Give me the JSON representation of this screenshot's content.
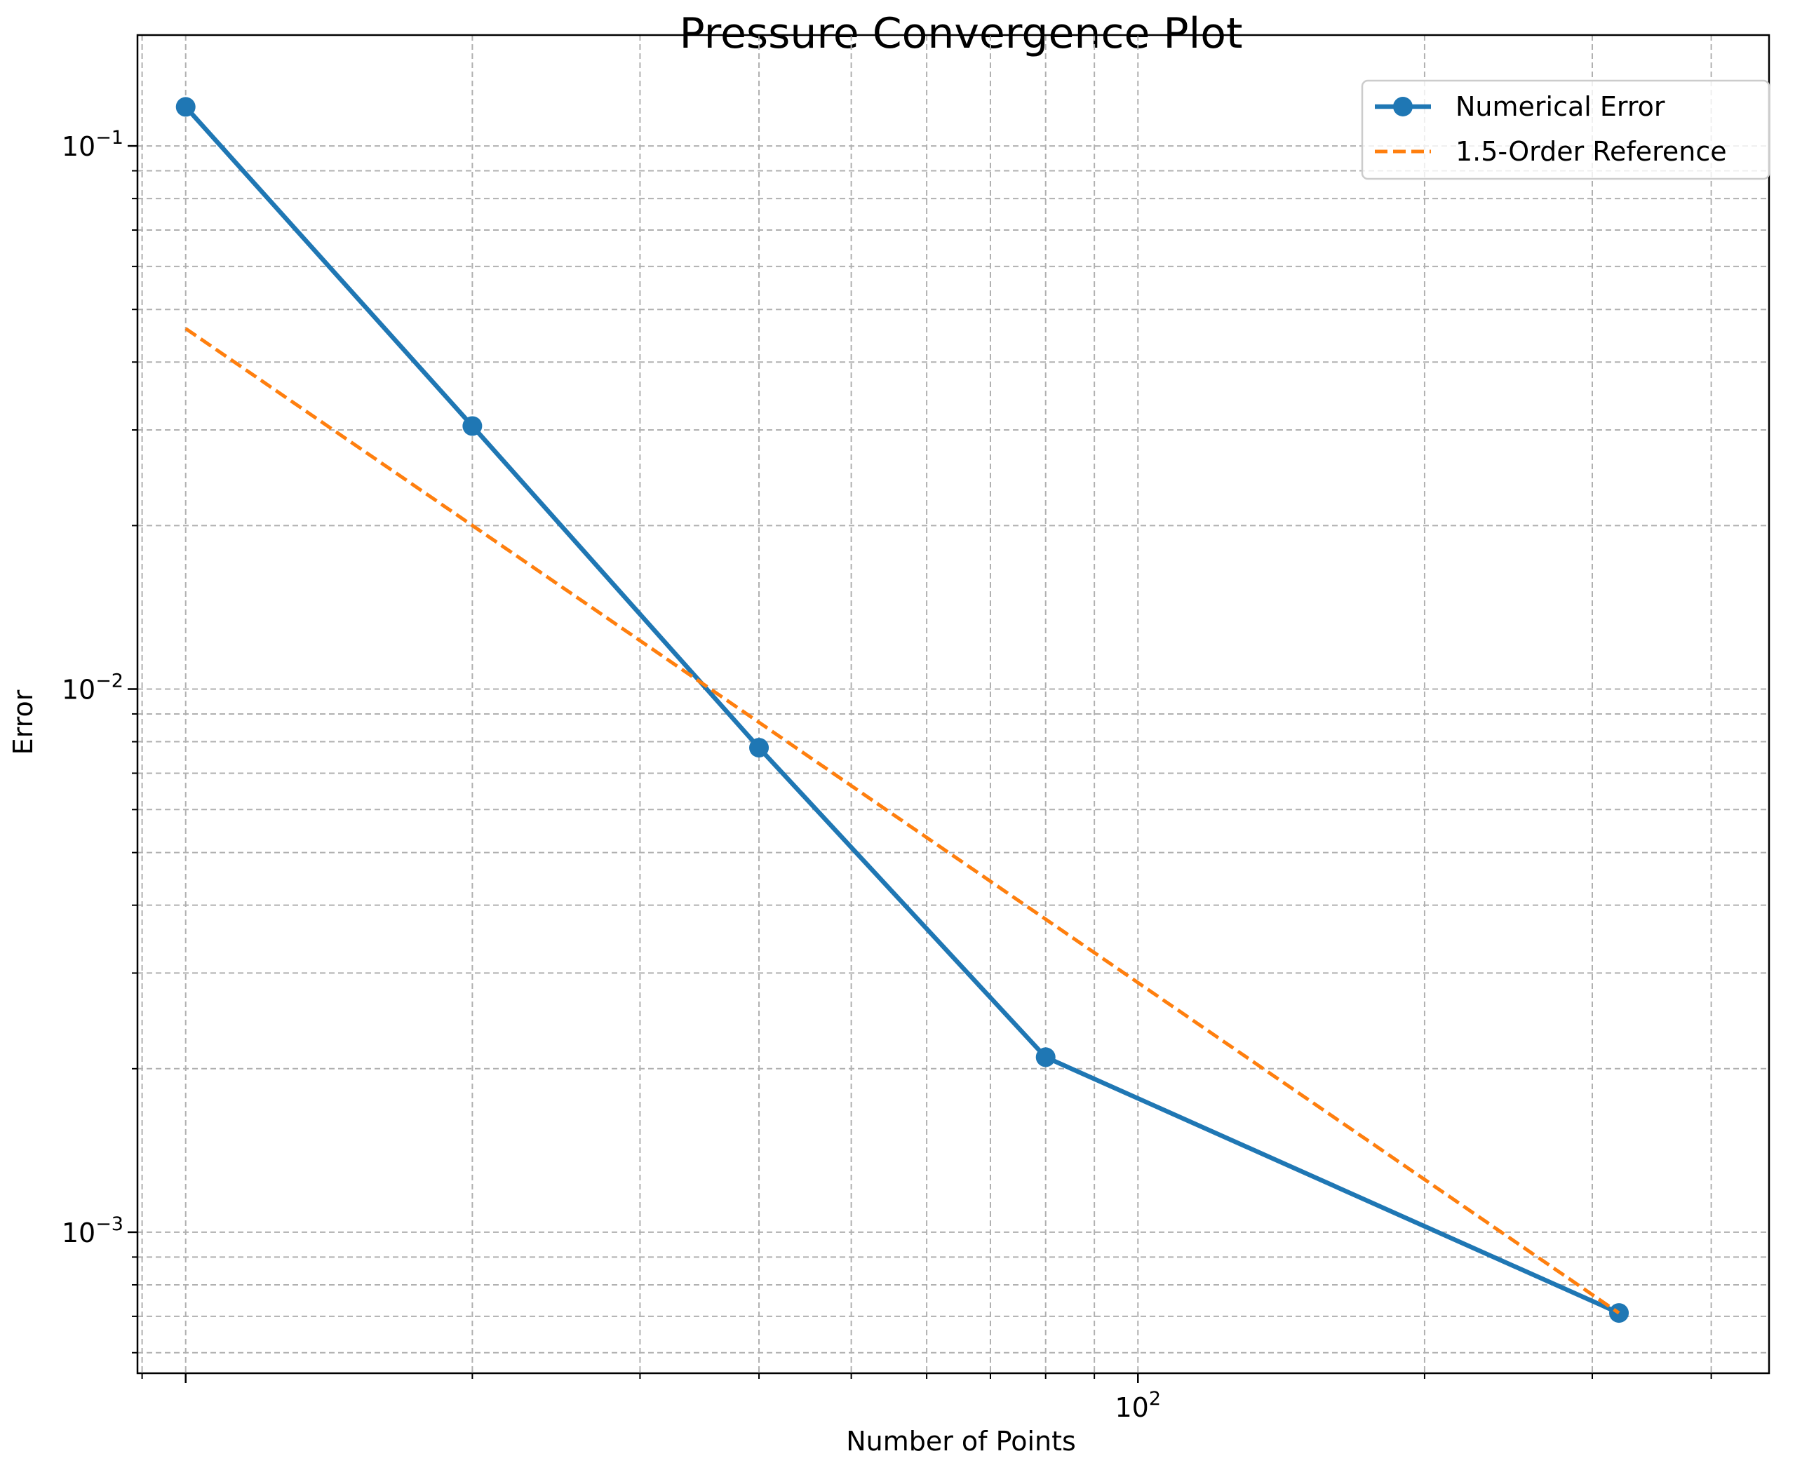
{
  "chart_data": {
    "type": "line",
    "title": "Pressure Convergence Plot",
    "xlabel": "Number of Points",
    "ylabel": "Error",
    "xscale": "log",
    "yscale": "log",
    "xlim": [
      8.9,
      460
    ],
    "ylim": [
      0.00055,
      0.16
    ],
    "grid": true,
    "grid_which": "both",
    "legend_position": "top-right",
    "x_ticks": [
      {
        "value": 100,
        "base": "10",
        "exp": "2"
      }
    ],
    "y_ticks": [
      {
        "value": 0.1,
        "base": "10",
        "exp": "−1"
      },
      {
        "value": 0.01,
        "base": "10",
        "exp": "−2"
      },
      {
        "value": 0.001,
        "base": "10",
        "exp": "−3"
      }
    ],
    "series": [
      {
        "name": "Numerical Error",
        "color": "#1f77b4",
        "style": "solid",
        "marker": "circle",
        "x": [
          10,
          20,
          40,
          80,
          320
        ],
        "y": [
          0.118,
          0.0305,
          0.0078,
          0.0021,
          0.00071
        ]
      },
      {
        "name": "1.5-Order Reference",
        "color": "#ff7f0e",
        "style": "dashed",
        "marker": "none",
        "x": [
          10,
          320
        ],
        "y": [
          0.0461,
          0.00071
        ]
      }
    ]
  }
}
